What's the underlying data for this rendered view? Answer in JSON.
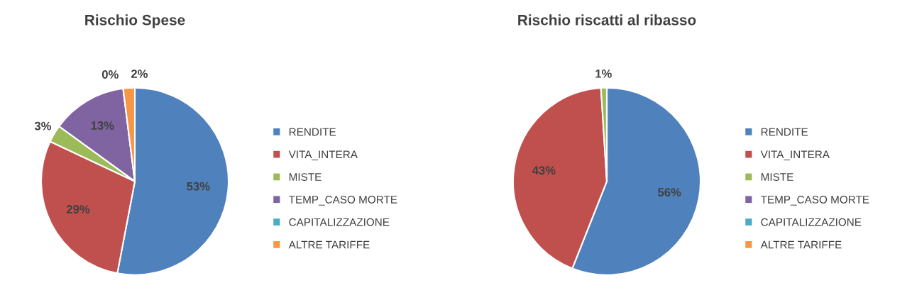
{
  "chart_data": [
    {
      "type": "pie",
      "title": "Rischio Spese",
      "categories": [
        "RENDITE",
        "VITA_INTERA",
        "MISTE",
        "TEMP_CASO MORTE",
        "CAPITALIZZAZIONE",
        "ALTRE TARIFFE"
      ],
      "values": [
        53,
        29,
        3,
        13,
        0,
        2
      ],
      "colors": [
        "#4f81bd",
        "#c0504d",
        "#9bbb59",
        "#8064a2",
        "#4bacc6",
        "#f79646"
      ],
      "value_labels": [
        "53%",
        "29%",
        "3%",
        "13%",
        "0%",
        "2%"
      ],
      "legend": "right"
    },
    {
      "type": "pie",
      "title": "Rischio riscatti al ribasso",
      "categories": [
        "RENDITE",
        "VITA_INTERA",
        "MISTE",
        "TEMP_CASO MORTE",
        "CAPITALIZZAZIONE",
        "ALTRE TARIFFE"
      ],
      "values": [
        56,
        43,
        1,
        0,
        0,
        0
      ],
      "colors": [
        "#4f81bd",
        "#c0504d",
        "#9bbb59",
        "#8064a2",
        "#4bacc6",
        "#f79646"
      ],
      "value_labels": [
        "56%",
        "43%",
        "1%",
        null,
        null,
        null
      ],
      "legend": "right"
    }
  ]
}
